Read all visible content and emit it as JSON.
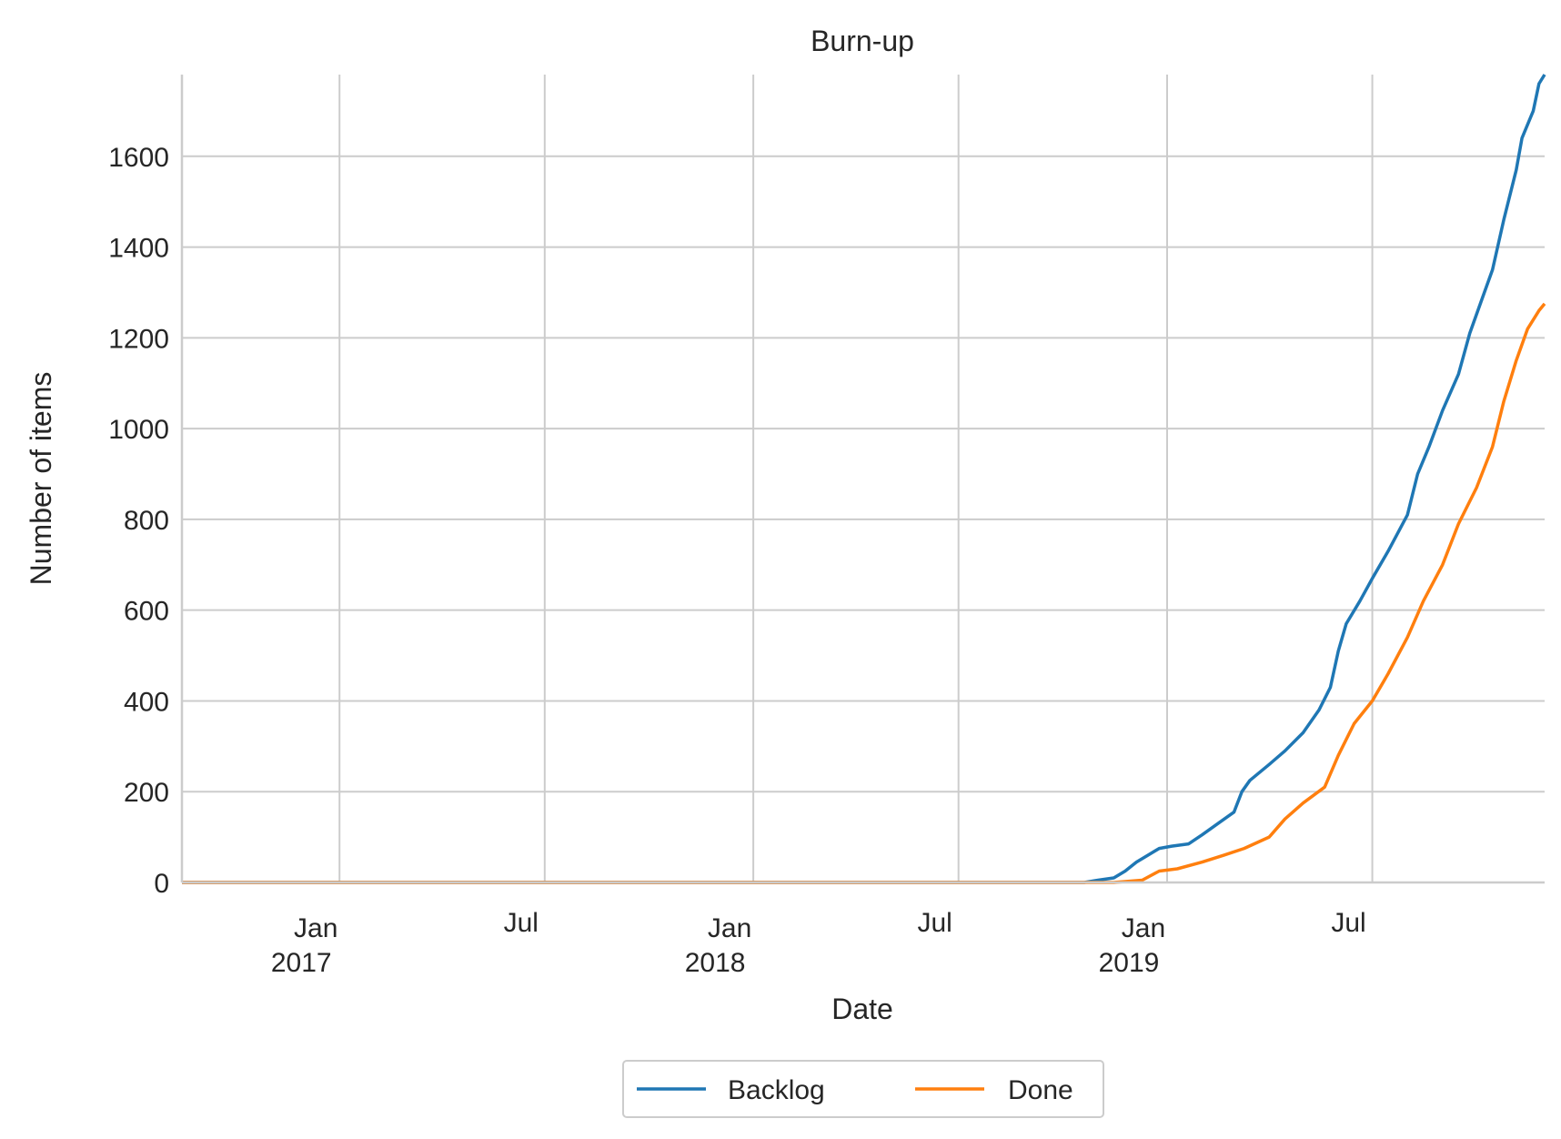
{
  "chart_data": {
    "type": "line",
    "title": "Burn-up",
    "xlabel": "Date",
    "ylabel": "Number of items",
    "xlim": [
      "2016-08-15",
      "2019-11-30"
    ],
    "ylim": [
      0,
      1780
    ],
    "grid": true,
    "legend": {
      "placement": "bottom-center",
      "columns": 2
    },
    "x_ticks": [
      {
        "date": "2017-01-01",
        "label": "Jan",
        "label2": "2017"
      },
      {
        "date": "2017-07-01",
        "label": "Jul",
        "label2": ""
      },
      {
        "date": "2018-01-01",
        "label": "Jan",
        "label2": "2018"
      },
      {
        "date": "2018-07-01",
        "label": "Jul",
        "label2": ""
      },
      {
        "date": "2019-01-01",
        "label": "Jan",
        "label2": "2019"
      },
      {
        "date": "2019-07-01",
        "label": "Jul",
        "label2": ""
      }
    ],
    "y_ticks": [
      0,
      200,
      400,
      600,
      800,
      1000,
      1200,
      1400,
      1600
    ],
    "series": [
      {
        "name": "Backlog",
        "color": "#1f77b4",
        "points": [
          [
            "2016-08-15",
            0
          ],
          [
            "2018-10-20",
            0
          ],
          [
            "2018-11-01",
            5
          ],
          [
            "2018-11-15",
            10
          ],
          [
            "2018-11-25",
            25
          ],
          [
            "2018-12-05",
            45
          ],
          [
            "2018-12-15",
            60
          ],
          [
            "2018-12-25",
            75
          ],
          [
            "2019-01-05",
            80
          ],
          [
            "2019-01-20",
            85
          ],
          [
            "2019-02-01",
            105
          ],
          [
            "2019-02-15",
            130
          ],
          [
            "2019-03-01",
            155
          ],
          [
            "2019-03-08",
            200
          ],
          [
            "2019-03-15",
            225
          ],
          [
            "2019-04-01",
            260
          ],
          [
            "2019-04-15",
            290
          ],
          [
            "2019-05-01",
            330
          ],
          [
            "2019-05-15",
            380
          ],
          [
            "2019-05-25",
            430
          ],
          [
            "2019-06-01",
            510
          ],
          [
            "2019-06-08",
            570
          ],
          [
            "2019-06-20",
            620
          ],
          [
            "2019-07-01",
            670
          ],
          [
            "2019-07-15",
            730
          ],
          [
            "2019-08-01",
            810
          ],
          [
            "2019-08-10",
            900
          ],
          [
            "2019-08-20",
            960
          ],
          [
            "2019-09-01",
            1040
          ],
          [
            "2019-09-15",
            1120
          ],
          [
            "2019-09-25",
            1210
          ],
          [
            "2019-10-05",
            1280
          ],
          [
            "2019-10-15",
            1350
          ],
          [
            "2019-10-25",
            1460
          ],
          [
            "2019-11-05",
            1570
          ],
          [
            "2019-11-10",
            1640
          ],
          [
            "2019-11-20",
            1700
          ],
          [
            "2019-11-25",
            1760
          ],
          [
            "2019-11-30",
            1780
          ]
        ]
      },
      {
        "name": "Done",
        "color": "#ff7f0e",
        "points": [
          [
            "2016-08-15",
            0
          ],
          [
            "2018-11-15",
            0
          ],
          [
            "2018-12-10",
            5
          ],
          [
            "2018-12-25",
            25
          ],
          [
            "2019-01-10",
            30
          ],
          [
            "2019-02-01",
            45
          ],
          [
            "2019-02-20",
            60
          ],
          [
            "2019-03-10",
            75
          ],
          [
            "2019-04-01",
            100
          ],
          [
            "2019-04-15",
            140
          ],
          [
            "2019-05-01",
            175
          ],
          [
            "2019-05-20",
            210
          ],
          [
            "2019-06-01",
            280
          ],
          [
            "2019-06-15",
            350
          ],
          [
            "2019-07-01",
            400
          ],
          [
            "2019-07-15",
            460
          ],
          [
            "2019-08-01",
            540
          ],
          [
            "2019-08-15",
            620
          ],
          [
            "2019-09-01",
            700
          ],
          [
            "2019-09-15",
            790
          ],
          [
            "2019-10-01",
            870
          ],
          [
            "2019-10-15",
            960
          ],
          [
            "2019-10-25",
            1060
          ],
          [
            "2019-11-05",
            1150
          ],
          [
            "2019-11-15",
            1220
          ],
          [
            "2019-11-25",
            1260
          ],
          [
            "2019-11-30",
            1275
          ]
        ]
      }
    ]
  }
}
